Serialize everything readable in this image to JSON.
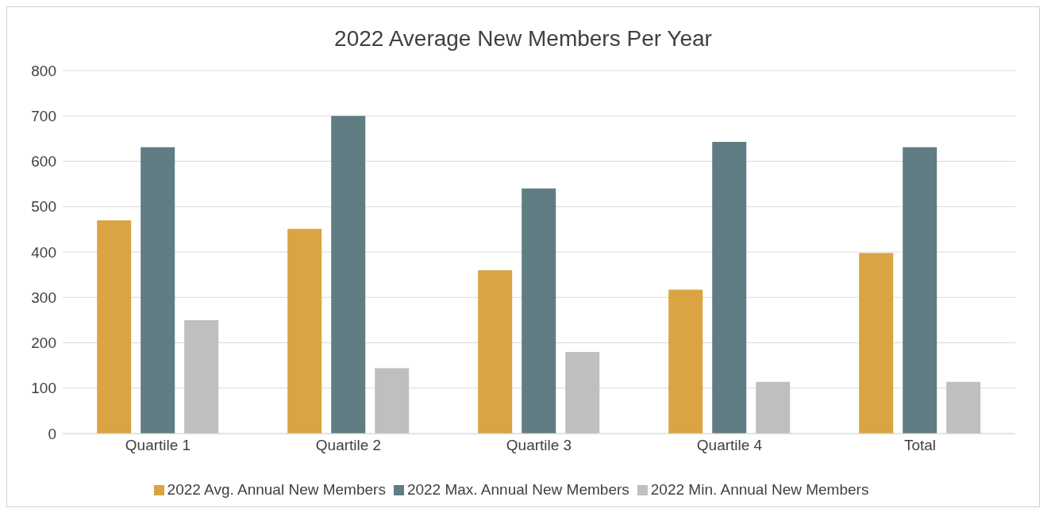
{
  "chart_data": {
    "type": "bar",
    "title": "2022 Average New Members Per Year",
    "categories": [
      "Quartile 1",
      "Quartile 2",
      "Quartile 3",
      "Quartile 4",
      "Total"
    ],
    "series": [
      {
        "name": "2022 Avg. Annual New Members",
        "color": "#d9a441",
        "values": [
          470,
          451,
          360,
          317,
          398
        ]
      },
      {
        "name": "2022 Max. Annual New Members",
        "color": "#5f7d82",
        "values": [
          631,
          700,
          540,
          643,
          631
        ]
      },
      {
        "name": "2022 Min. Annual New Members",
        "color": "#bfbfbf",
        "values": [
          250,
          144,
          180,
          114,
          114
        ]
      }
    ],
    "ylim": [
      0,
      800
    ],
    "yticks": [
      0,
      100,
      200,
      300,
      400,
      500,
      600,
      700,
      800
    ],
    "grid": "y",
    "legend": "bottom"
  }
}
